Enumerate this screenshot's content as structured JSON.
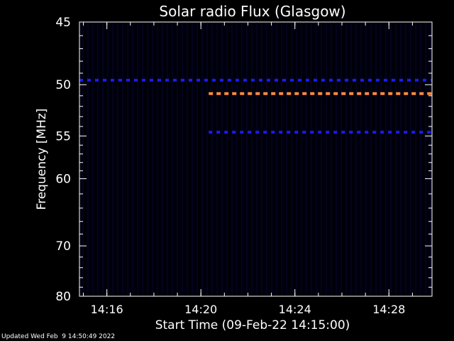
{
  "chart_data": {
    "type": "heatmap",
    "title": "Solar radio Flux (Glasgow)",
    "xlabel": "Start Time (09-Feb-22 14:15:00)",
    "ylabel": "Frequency [MHz]",
    "x_range_minutes": [
      "14:14:50",
      "14:29:50"
    ],
    "y_range_mhz": [
      45,
      80
    ],
    "y_scale": "reciprocal",
    "x_ticks": [
      "14:16",
      "14:20",
      "14:24",
      "14:28"
    ],
    "y_ticks": [
      "45",
      "50",
      "55",
      "60",
      "70",
      "80"
    ],
    "background_color": "#000000",
    "grid": false,
    "features": [
      {
        "kind": "dashed-band",
        "freq_mhz": 49.6,
        "time_start": "14:14:50",
        "time_end": "14:29:50",
        "color": "#1a1aff"
      },
      {
        "kind": "dashed-band",
        "freq_mhz": 50.8,
        "time_start": "14:20:20",
        "time_end": "14:29:50",
        "color": "#ff8c40"
      },
      {
        "kind": "dashed-band",
        "freq_mhz": 54.6,
        "time_start": "14:20:20",
        "time_end": "14:29:50",
        "color": "#1a1aff"
      }
    ]
  },
  "footer_text": "Updated Wed Feb  9 14:50:49 2022"
}
